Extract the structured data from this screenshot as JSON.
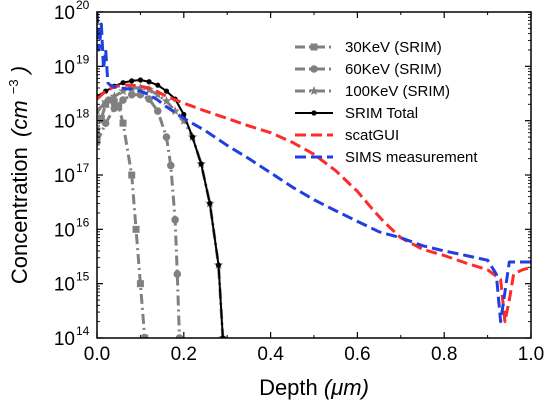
{
  "chart_data": {
    "type": "line",
    "xlabel": "Depth",
    "xlabel_unit": "(μm)",
    "ylabel": "Concentration",
    "ylabel_unit": "(cm",
    "ylabel_exp": "−3",
    "ylabel_close": ")",
    "xlim": [
      0.0,
      1.0
    ],
    "ylim": [
      100000000000000.0,
      1e+20
    ],
    "yscale": "log",
    "x_ticks": [
      "0.0",
      "0.2",
      "0.4",
      "0.6",
      "0.8",
      "1.0"
    ],
    "y_ticks": [
      {
        "base": "10",
        "exp": "14"
      },
      {
        "base": "10",
        "exp": "15"
      },
      {
        "base": "10",
        "exp": "16"
      },
      {
        "base": "10",
        "exp": "17"
      },
      {
        "base": "10",
        "exp": "18"
      },
      {
        "base": "10",
        "exp": "19"
      },
      {
        "base": "10",
        "exp": "20"
      }
    ],
    "legend_position": "top-right",
    "series": [
      {
        "name": "30KeV (SRIM)",
        "color": "#808080",
        "style": "dashdot",
        "marker": "square",
        "points": [
          [
            0.0,
            5e+17
          ],
          [
            0.01,
            1.1e+18
          ],
          [
            0.02,
            2e+18
          ],
          [
            0.03,
            2.4e+18
          ],
          [
            0.04,
            2.2e+18
          ],
          [
            0.05,
            1.8e+18
          ],
          [
            0.06,
            9e+17
          ],
          [
            0.08,
            1e+17
          ],
          [
            0.09,
            1e+16
          ],
          [
            0.1,
            1000000000000000.0
          ],
          [
            0.11,
            100000000000000.0
          ]
        ]
      },
      {
        "name": "60KeV (SRIM)",
        "color": "#808080",
        "style": "dashdot",
        "marker": "circle",
        "points": [
          [
            0.0,
            4e+17
          ],
          [
            0.02,
            9e+17
          ],
          [
            0.04,
            1.7e+18
          ],
          [
            0.06,
            2.4e+18
          ],
          [
            0.08,
            3e+18
          ],
          [
            0.1,
            3e+18
          ],
          [
            0.12,
            2.5e+18
          ],
          [
            0.14,
            1.5e+18
          ],
          [
            0.16,
            5e+17
          ],
          [
            0.17,
            1.5e+17
          ],
          [
            0.18,
            1.5e+16
          ],
          [
            0.185,
            1500000000000000.0
          ],
          [
            0.19,
            100000000000000.0
          ]
        ]
      },
      {
        "name": "100KeV (SRIM)",
        "color": "#808080",
        "style": "dashdot",
        "marker": "star",
        "points": [
          [
            0.0,
            1.5e+18
          ],
          [
            0.02,
            2.2e+18
          ],
          [
            0.04,
            2.8e+18
          ],
          [
            0.06,
            3.5e+18
          ],
          [
            0.08,
            4e+18
          ],
          [
            0.1,
            4e+18
          ],
          [
            0.12,
            3.7e+18
          ],
          [
            0.14,
            3e+18
          ],
          [
            0.16,
            2.3e+18
          ],
          [
            0.18,
            1.5e+18
          ],
          [
            0.2,
            1e+18
          ],
          [
            0.22,
            5e+17
          ],
          [
            0.24,
            1.6e+17
          ],
          [
            0.26,
            3e+16
          ],
          [
            0.28,
            2200000000000000.0
          ],
          [
            0.29,
            100000000000000.0
          ]
        ]
      },
      {
        "name": "SRIM Total",
        "color": "#000000",
        "style": "solid",
        "marker": "dot",
        "points": [
          [
            0.0,
            2.8e+18
          ],
          [
            0.02,
            3.5e+18
          ],
          [
            0.04,
            4.3e+18
          ],
          [
            0.06,
            5e+18
          ],
          [
            0.08,
            5.4e+18
          ],
          [
            0.1,
            5.6e+18
          ],
          [
            0.12,
            5.2e+18
          ],
          [
            0.14,
            4.5e+18
          ],
          [
            0.16,
            3.5e+18
          ],
          [
            0.18,
            2.5e+18
          ],
          [
            0.2,
            1.3e+18
          ],
          [
            0.22,
            5e+17
          ],
          [
            0.24,
            1.6e+17
          ],
          [
            0.26,
            3e+16
          ],
          [
            0.28,
            2200000000000000.0
          ],
          [
            0.29,
            100000000000000.0
          ]
        ]
      },
      {
        "name": "scatGUI",
        "color": "#ff2a2a",
        "style": "dashed",
        "marker": "none",
        "points": [
          [
            0.0,
            2.5e+18
          ],
          [
            0.02,
            3.5e+18
          ],
          [
            0.04,
            4.2e+18
          ],
          [
            0.06,
            4.5e+18
          ],
          [
            0.08,
            4.5e+18
          ],
          [
            0.1,
            4.3e+18
          ],
          [
            0.12,
            4e+18
          ],
          [
            0.14,
            3.4e+18
          ],
          [
            0.16,
            2.8e+18
          ],
          [
            0.2,
            2.1e+18
          ],
          [
            0.25,
            1.5e+18
          ],
          [
            0.3,
            1.1e+18
          ],
          [
            0.35,
            8e+17
          ],
          [
            0.4,
            6e+17
          ],
          [
            0.45,
            4e+17
          ],
          [
            0.5,
            2.4e+17
          ],
          [
            0.55,
            1.2e+17
          ],
          [
            0.6,
            5e+16
          ],
          [
            0.63,
            2.6e+16
          ],
          [
            0.66,
            1.4e+16
          ],
          [
            0.7,
            7000000000000000.0
          ],
          [
            0.75,
            4300000000000000.0
          ],
          [
            0.8,
            3300000000000000.0
          ],
          [
            0.85,
            2400000000000000.0
          ],
          [
            0.9,
            1800000000000000.0
          ],
          [
            0.93,
            1200000000000000.0
          ],
          [
            0.94,
            200000000000000.0
          ],
          [
            0.95,
            500000000000000.0
          ],
          [
            0.96,
            1500000000000000.0
          ],
          [
            0.98,
            1800000000000000.0
          ],
          [
            1.0,
            2000000000000000.0
          ]
        ]
      },
      {
        "name": "SIMS measurement",
        "color": "#1f3fe0",
        "style": "dashed",
        "marker": "none",
        "points": [
          [
            0.0,
            1e+20
          ],
          [
            0.005,
            2e+19
          ],
          [
            0.01,
            6e+19
          ],
          [
            0.015,
            9e+18
          ],
          [
            0.02,
            2e+19
          ],
          [
            0.025,
            5e+18
          ],
          [
            0.03,
            4.5e+18
          ],
          [
            0.05,
            4e+18
          ],
          [
            0.08,
            3.8e+18
          ],
          [
            0.1,
            3.5e+18
          ],
          [
            0.12,
            3e+18
          ],
          [
            0.14,
            2.4e+18
          ],
          [
            0.16,
            1.8e+18
          ],
          [
            0.2,
            1.1e+18
          ],
          [
            0.25,
            6.5e+17
          ],
          [
            0.3,
            3.5e+17
          ],
          [
            0.35,
            2e+17
          ],
          [
            0.4,
            1.1e+17
          ],
          [
            0.45,
            6e+16
          ],
          [
            0.5,
            3.5e+16
          ],
          [
            0.55,
            2.2e+16
          ],
          [
            0.6,
            1.4e+16
          ],
          [
            0.65,
            9000000000000000.0
          ],
          [
            0.7,
            7000000000000000.0
          ],
          [
            0.75,
            5000000000000000.0
          ],
          [
            0.8,
            4000000000000000.0
          ],
          [
            0.85,
            3300000000000000.0
          ],
          [
            0.9,
            2700000000000000.0
          ],
          [
            0.92,
            1500000000000000.0
          ],
          [
            0.93,
            200000000000000.0
          ],
          [
            0.95,
            2500000000000000.0
          ],
          [
            1.0,
            2500000000000000.0
          ]
        ]
      }
    ]
  }
}
